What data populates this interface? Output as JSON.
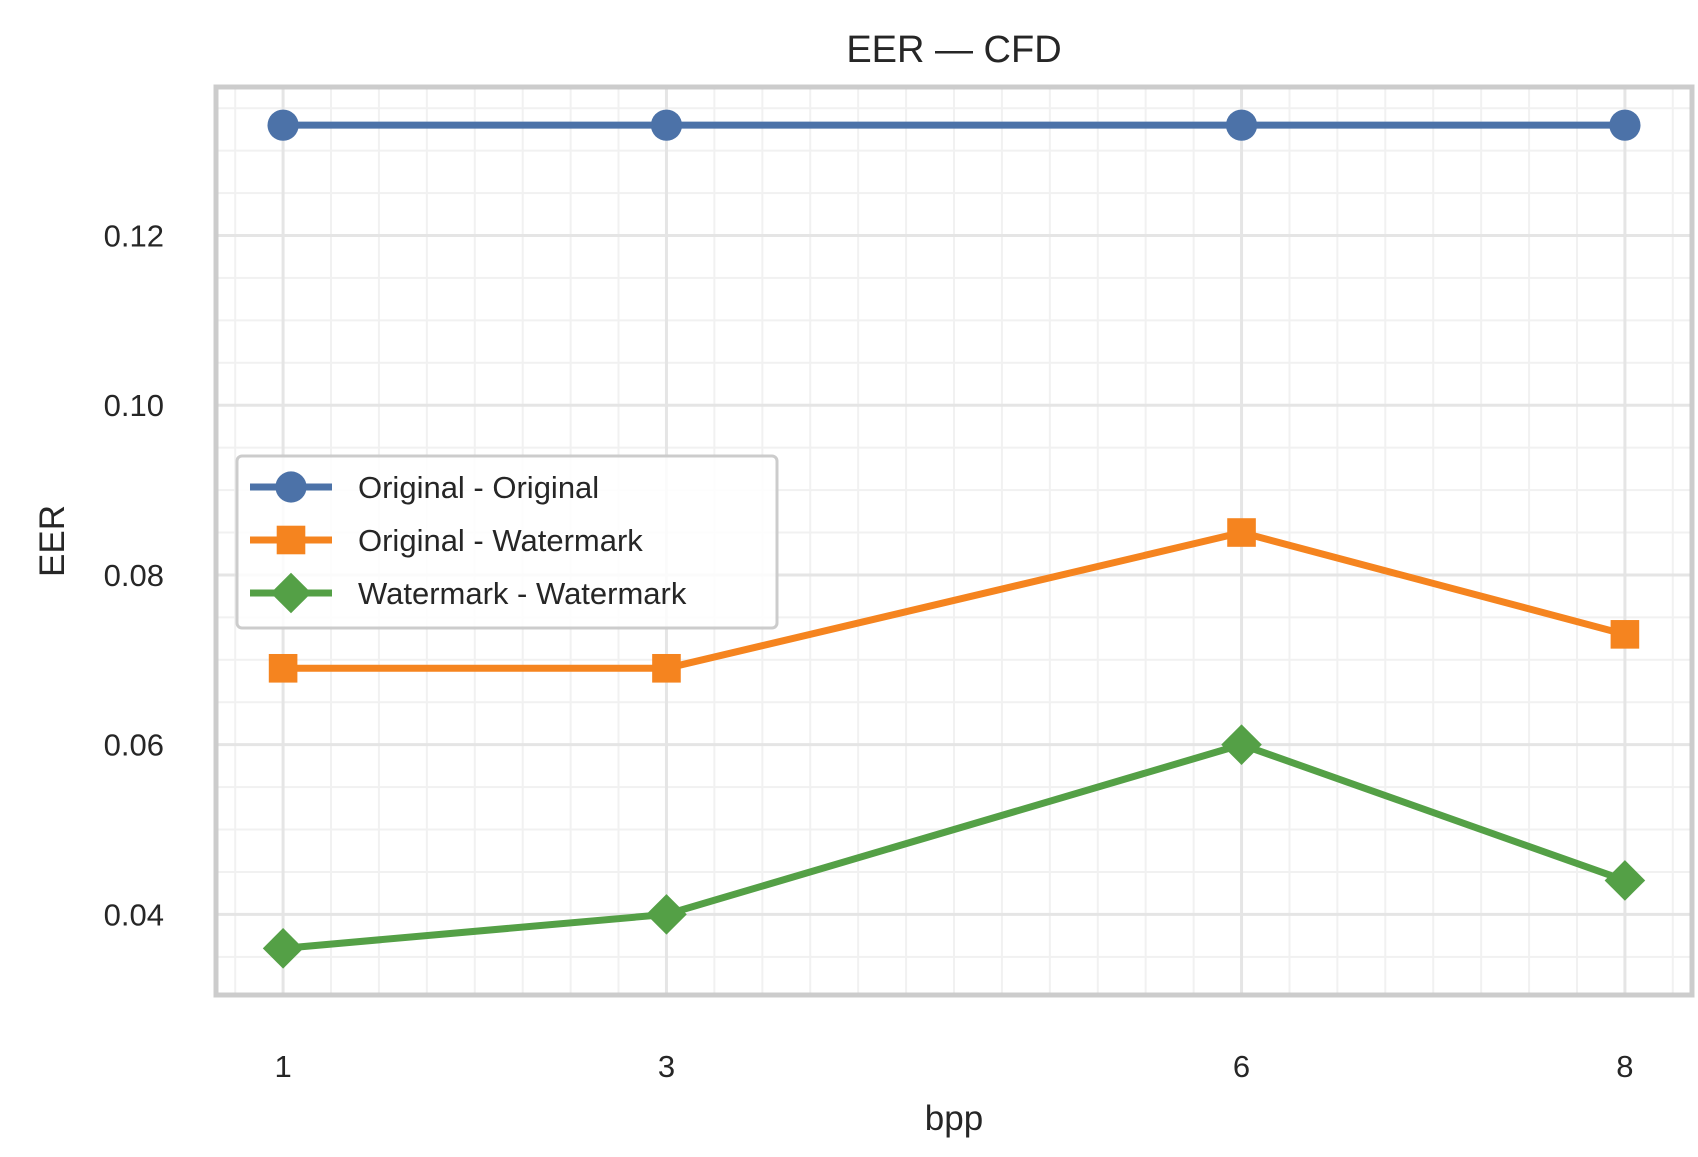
{
  "chart_data": {
    "type": "line",
    "title": "EER — CFD",
    "xlabel": "bpp",
    "ylabel": "EER",
    "x": [
      1,
      3,
      6,
      8
    ],
    "x_tick_labels": [
      "1",
      "3",
      "6",
      "8"
    ],
    "xlim": [
      0.65,
      8.35
    ],
    "ylim": [
      0.0305,
      0.1375
    ],
    "y_ticks": [
      0.04,
      0.06,
      0.08,
      0.1,
      0.12
    ],
    "y_tick_labels": [
      "0.04",
      "0.06",
      "0.08",
      "0.10",
      "0.12"
    ],
    "grid": true,
    "legend_position": "center-left",
    "series": [
      {
        "name": "Original - Original",
        "values": [
          0.133,
          0.133,
          0.133,
          0.133
        ],
        "color": "#4c72a8",
        "marker": "circle"
      },
      {
        "name": "Original - Watermark",
        "values": [
          0.069,
          0.069,
          0.085,
          0.073
        ],
        "color": "#f5841f",
        "marker": "square"
      },
      {
        "name": "Watermark - Watermark",
        "values": [
          0.036,
          0.04,
          0.06,
          0.044
        ],
        "color": "#54a046",
        "marker": "diamond"
      }
    ]
  }
}
